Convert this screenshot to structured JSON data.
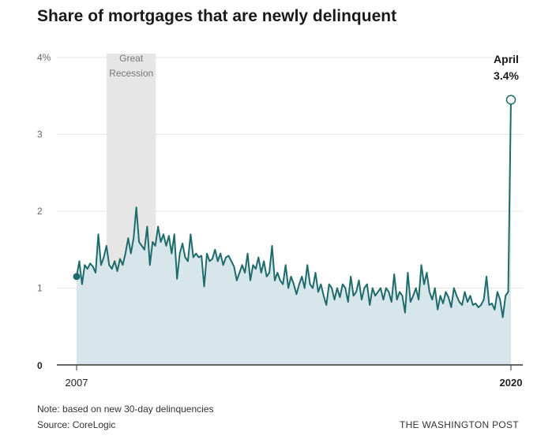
{
  "title": "Share of mortgages that are newly delinquent",
  "note": "Note: based on new 30-day delinquencies",
  "source": "Source: CoreLogic",
  "credit": "THE WASHINGTON POST",
  "colors": {
    "line": "#1f6b6b",
    "area": "#d6e6ea",
    "recession": "#e6e6e6",
    "grid": "#e3e3e3",
    "axis": "#333333"
  },
  "chart_data": {
    "type": "area",
    "title": "Share of mortgages that are newly delinquent",
    "xlabel": "",
    "ylabel": "",
    "x_start": "2007-01",
    "x_end": "2020-04",
    "x_tick_labels": [
      "2007",
      "2020"
    ],
    "y_ticks": [
      0,
      1,
      2,
      3,
      4
    ],
    "y_tick_labels": [
      "0",
      "1",
      "2",
      "3",
      "4%"
    ],
    "ylim": [
      0,
      4
    ],
    "grid": true,
    "shaded_period": {
      "label_lines": [
        "Great",
        "Recession"
      ],
      "start": "2007-12",
      "end": "2009-06"
    },
    "annotation": {
      "label_lines": [
        "April",
        "3.4%"
      ],
      "date": "2020-04",
      "value": 3.45
    },
    "series": [
      {
        "values": [
          1.15,
          1.35,
          1.05,
          1.3,
          1.25,
          1.32,
          1.28,
          1.2,
          1.7,
          1.3,
          1.4,
          1.55,
          1.3,
          1.25,
          1.35,
          1.22,
          1.38,
          1.3,
          1.45,
          1.65,
          1.45,
          1.65,
          2.05,
          1.6,
          1.55,
          1.5,
          1.8,
          1.3,
          1.6,
          1.55,
          1.8,
          1.6,
          1.7,
          1.55,
          1.68,
          1.45,
          1.7,
          1.12,
          1.45,
          1.58,
          1.4,
          1.35,
          1.7,
          1.4,
          1.45,
          1.4,
          1.42,
          1.02,
          1.45,
          1.35,
          1.38,
          1.5,
          1.35,
          1.45,
          1.3,
          1.4,
          1.42,
          1.35,
          1.28,
          1.1,
          1.2,
          1.3,
          1.2,
          1.45,
          1.1,
          1.3,
          1.25,
          1.4,
          1.2,
          1.35,
          1.15,
          1.2,
          1.55,
          1.1,
          1.2,
          1.1,
          1.05,
          1.3,
          1.0,
          1.15,
          1.05,
          0.92,
          1.05,
          1.15,
          1.0,
          1.3,
          1.05,
          1.0,
          1.2,
          0.95,
          1.05,
          0.9,
          0.78,
          1.05,
          1.0,
          0.85,
          1.0,
          0.88,
          1.05,
          1.0,
          0.82,
          1.15,
          0.9,
          0.95,
          1.1,
          0.85,
          1.0,
          1.05,
          0.78,
          1.0,
          0.9,
          0.95,
          1.0,
          0.85,
          1.0,
          0.95,
          0.82,
          1.18,
          0.85,
          0.95,
          0.9,
          0.68,
          1.2,
          0.82,
          0.9,
          1.0,
          0.85,
          1.3,
          1.05,
          1.2,
          0.95,
          0.85,
          1.0,
          0.72,
          0.9,
          0.8,
          0.95,
          0.88,
          0.75,
          1.0,
          0.9,
          0.82,
          0.78,
          0.95,
          0.82,
          0.9,
          0.78,
          0.8,
          0.75,
          0.78,
          0.85,
          1.15,
          0.78,
          0.8,
          0.72,
          0.95,
          0.85,
          0.62,
          0.9,
          0.95,
          3.45
        ]
      }
    ]
  }
}
